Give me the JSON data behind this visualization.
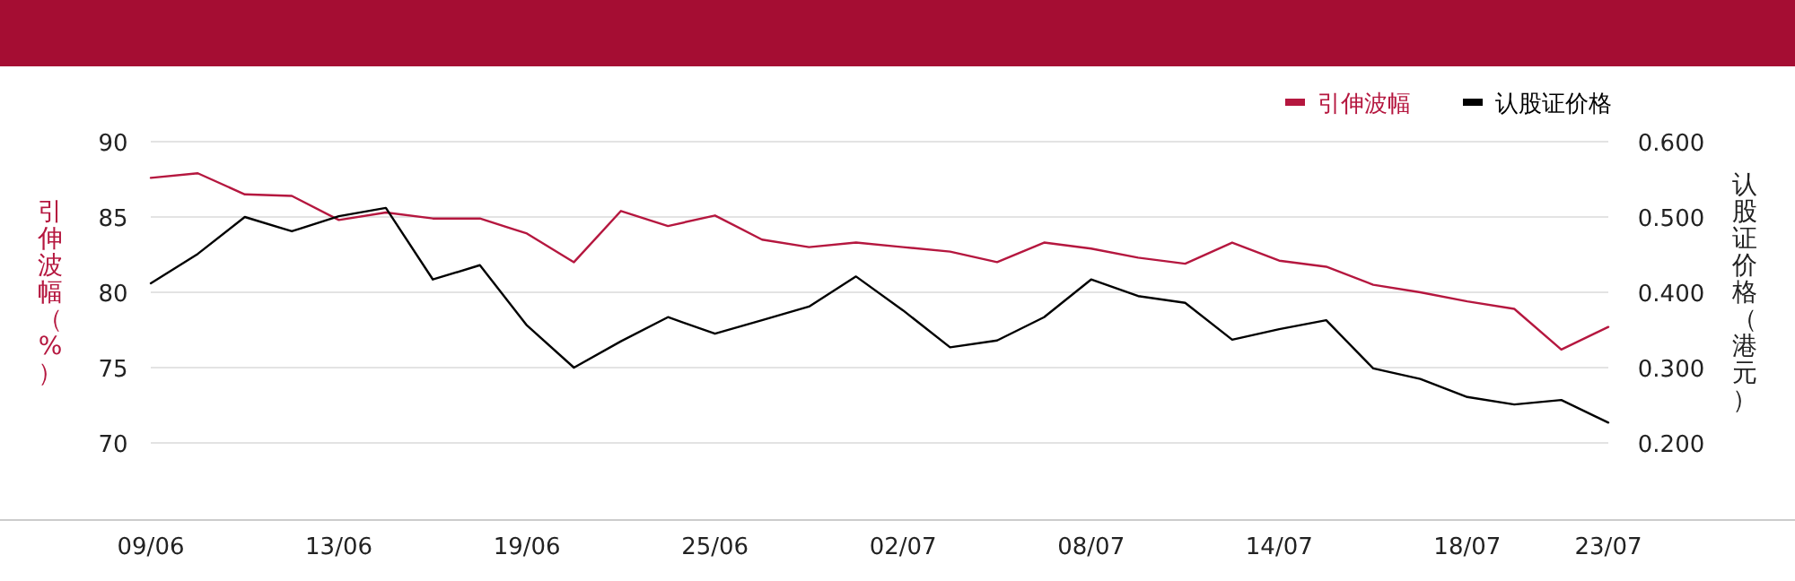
{
  "chart_data": {
    "type": "line",
    "categories": [
      "09/06",
      null,
      null,
      null,
      "13/06",
      null,
      null,
      null,
      "19/06",
      null,
      null,
      null,
      "25/06",
      null,
      null,
      null,
      "02/07",
      null,
      null,
      null,
      "08/07",
      null,
      null,
      null,
      "14/07",
      null,
      null,
      null,
      "18/07",
      null,
      null,
      "23/07"
    ],
    "series": [
      {
        "name": "引伸波幅",
        "color": "#b5173f",
        "values": [
          87.6,
          87.9,
          86.5,
          86.4,
          84.8,
          85.3,
          84.9,
          84.9,
          83.9,
          82.0,
          85.4,
          84.4,
          85.1,
          83.5,
          83.0,
          83.3,
          83.0,
          82.7,
          82.0,
          83.3,
          82.9,
          82.3,
          81.9,
          83.3,
          82.1,
          81.7,
          80.5,
          80.0,
          79.4,
          78.9,
          76.2,
          77.7
        ]
      },
      {
        "name": "认股证价格",
        "color": "#000000",
        "axis": "y2",
        "values": [
          0.412,
          0.451,
          0.5,
          0.481,
          0.501,
          0.512,
          0.417,
          0.436,
          0.356,
          0.3,
          0.335,
          0.367,
          0.345,
          0.363,
          0.381,
          0.421,
          0.376,
          0.327,
          0.336,
          0.367,
          0.417,
          0.395,
          0.386,
          0.337,
          0.351,
          0.363,
          0.299,
          0.285,
          0.261,
          0.251,
          0.257,
          0.227
        ]
      }
    ],
    "ylabel": "引伸波幅（%）",
    "y2label": "认股证价格（港元）",
    "ylim": [
      70,
      90
    ],
    "yticks": [
      70,
      75,
      80,
      85,
      90
    ],
    "y2lim": [
      0.2,
      0.6
    ],
    "y2ticks": [
      {
        "value": 0.2,
        "label": "0.200"
      },
      {
        "value": 0.3,
        "label": "0.300"
      },
      {
        "value": 0.4,
        "label": "0.400"
      },
      {
        "value": 0.5,
        "label": "0.500"
      },
      {
        "value": 0.6,
        "label": "0.600"
      }
    ],
    "grid": "y",
    "legend": "top right",
    "marker": "none",
    "line_style": "solid"
  }
}
